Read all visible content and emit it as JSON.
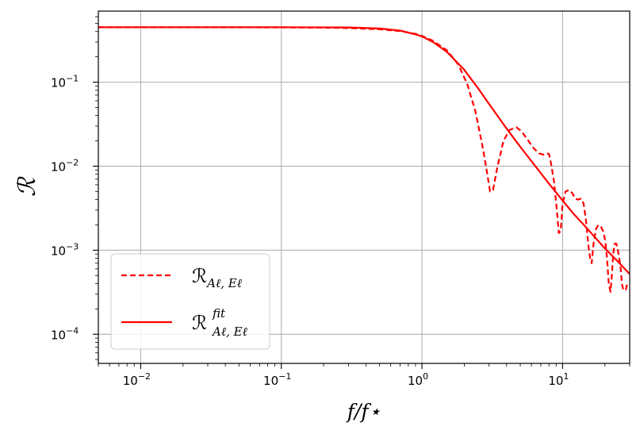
{
  "chart_data": {
    "type": "line",
    "xscale": "log",
    "yscale": "log",
    "xlim": [
      0.005,
      30
    ],
    "ylim": [
      4.5e-05,
      0.7
    ],
    "xlabel": "f/f⋆",
    "ylabel": "ℛ",
    "grid": true,
    "legend_position": "lower-left",
    "x_ticks": [
      {
        "value": 0.01,
        "base": "10",
        "exp": "−2"
      },
      {
        "value": 0.1,
        "base": "10",
        "exp": "−1"
      },
      {
        "value": 1,
        "base": "10",
        "exp": "0"
      },
      {
        "value": 10,
        "base": "10",
        "exp": "1"
      }
    ],
    "y_ticks": [
      {
        "value": 0.1,
        "base": "10",
        "exp": "−1"
      },
      {
        "value": 0.01,
        "base": "10",
        "exp": "−2"
      },
      {
        "value": 0.001,
        "base": "10",
        "exp": "−3"
      },
      {
        "value": 0.0001,
        "base": "10",
        "exp": "−4"
      }
    ],
    "series": [
      {
        "name": "ℛ_{Aℓ,Eℓ}",
        "legend_main": "ℛ",
        "legend_sub": "Aℓ, Eℓ",
        "legend_sup": "",
        "style": "dashed",
        "color": "#ff0000",
        "x": [
          0.005,
          0.01,
          0.03,
          0.1,
          0.2,
          0.3,
          0.5,
          0.7,
          0.9,
          1.0,
          1.2,
          1.5,
          1.8,
          2.1,
          2.4,
          2.7,
          2.9,
          3.05,
          3.2,
          3.45,
          3.8,
          4.2,
          4.7,
          5.1,
          5.6,
          6.2,
          6.8,
          7.3,
          7.7,
          8.0,
          8.3,
          8.7,
          9.1,
          9.4,
          9.7,
          10.0,
          10.5,
          11.1,
          11.7,
          12.3,
          12.9,
          13.5,
          14.1,
          14.7,
          15.3,
          15.7,
          16.1,
          16.6,
          17.3,
          18.0,
          18.7,
          19.4,
          20.1,
          20.7,
          21.3,
          21.9,
          22.4,
          22.9,
          23.5,
          24.1,
          24.7,
          25.3,
          25.9,
          26.4,
          27.0,
          27.6,
          28.2,
          28.8,
          29.4,
          30.0
        ],
        "y": [
          0.45,
          0.45,
          0.45,
          0.448,
          0.445,
          0.44,
          0.425,
          0.405,
          0.375,
          0.355,
          0.31,
          0.24,
          0.165,
          0.095,
          0.045,
          0.017,
          0.0085,
          0.005,
          0.0052,
          0.01,
          0.02,
          0.027,
          0.029,
          0.026,
          0.021,
          0.0165,
          0.0142,
          0.0137,
          0.0142,
          0.014,
          0.0105,
          0.0065,
          0.003,
          0.0016,
          0.0017,
          0.0036,
          0.005,
          0.0052,
          0.0048,
          0.0041,
          0.004,
          0.0041,
          0.0036,
          0.0022,
          0.0011,
          0.0008,
          0.0007,
          0.0012,
          0.0018,
          0.002,
          0.0019,
          0.0017,
          0.0013,
          0.0008,
          0.0004,
          0.00032,
          0.0005,
          0.0009,
          0.0012,
          0.0012,
          0.001,
          0.0008,
          0.0006,
          0.0004,
          0.00034,
          0.00033,
          0.00034,
          0.0004,
          0.0004,
          0.0004
        ]
      },
      {
        "name": "ℛ^{fit}_{Aℓ,Eℓ}",
        "legend_main": "ℛ",
        "legend_sub": "Aℓ, Eℓ",
        "legend_sup": "fit",
        "style": "solid",
        "color": "#ff0000",
        "x": [
          0.005,
          0.01,
          0.03,
          0.1,
          0.3,
          0.5,
          0.7,
          0.9,
          1.0,
          1.2,
          1.5,
          2.0,
          2.5,
          3.0,
          4.0,
          5.0,
          6.0,
          8.0,
          10.0,
          12.0,
          15.0,
          20.0,
          25.0,
          30.0
        ],
        "y": [
          0.45,
          0.45,
          0.45,
          0.45,
          0.447,
          0.435,
          0.41,
          0.37,
          0.35,
          0.3,
          0.23,
          0.14,
          0.085,
          0.055,
          0.028,
          0.017,
          0.0115,
          0.0062,
          0.0039,
          0.0027,
          0.0018,
          0.00105,
          0.00072,
          0.00052
        ]
      }
    ]
  }
}
